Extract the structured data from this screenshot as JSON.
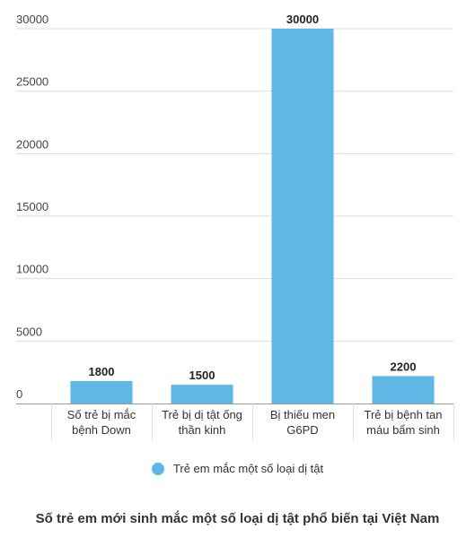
{
  "chart_data": {
    "type": "bar",
    "title": "Số trẻ em mới sinh mắc một số loại dị tật phổ biến tại Việt Nam",
    "categories": [
      [
        "Số trẻ bị mắc",
        "bệnh Down"
      ],
      [
        "Trẻ bị dị tật ống",
        "thần kinh"
      ],
      [
        "Bị thiếu men",
        "G6PD"
      ],
      [
        "Trẻ bị bệnh tan",
        "máu bẩm sinh"
      ]
    ],
    "series": [
      {
        "name": "Trẻ em mắc một số loại dị tật",
        "values": [
          1800,
          1500,
          30000,
          2200
        ]
      }
    ],
    "ylim": [
      0,
      30000
    ],
    "yticks": [
      0,
      5000,
      10000,
      15000,
      20000,
      25000,
      30000
    ],
    "grid": true,
    "legend_position": "bottom",
    "bar_color": "#5eb7e5",
    "grid_color": "#dcdcdc",
    "axis_color": "#999999"
  }
}
